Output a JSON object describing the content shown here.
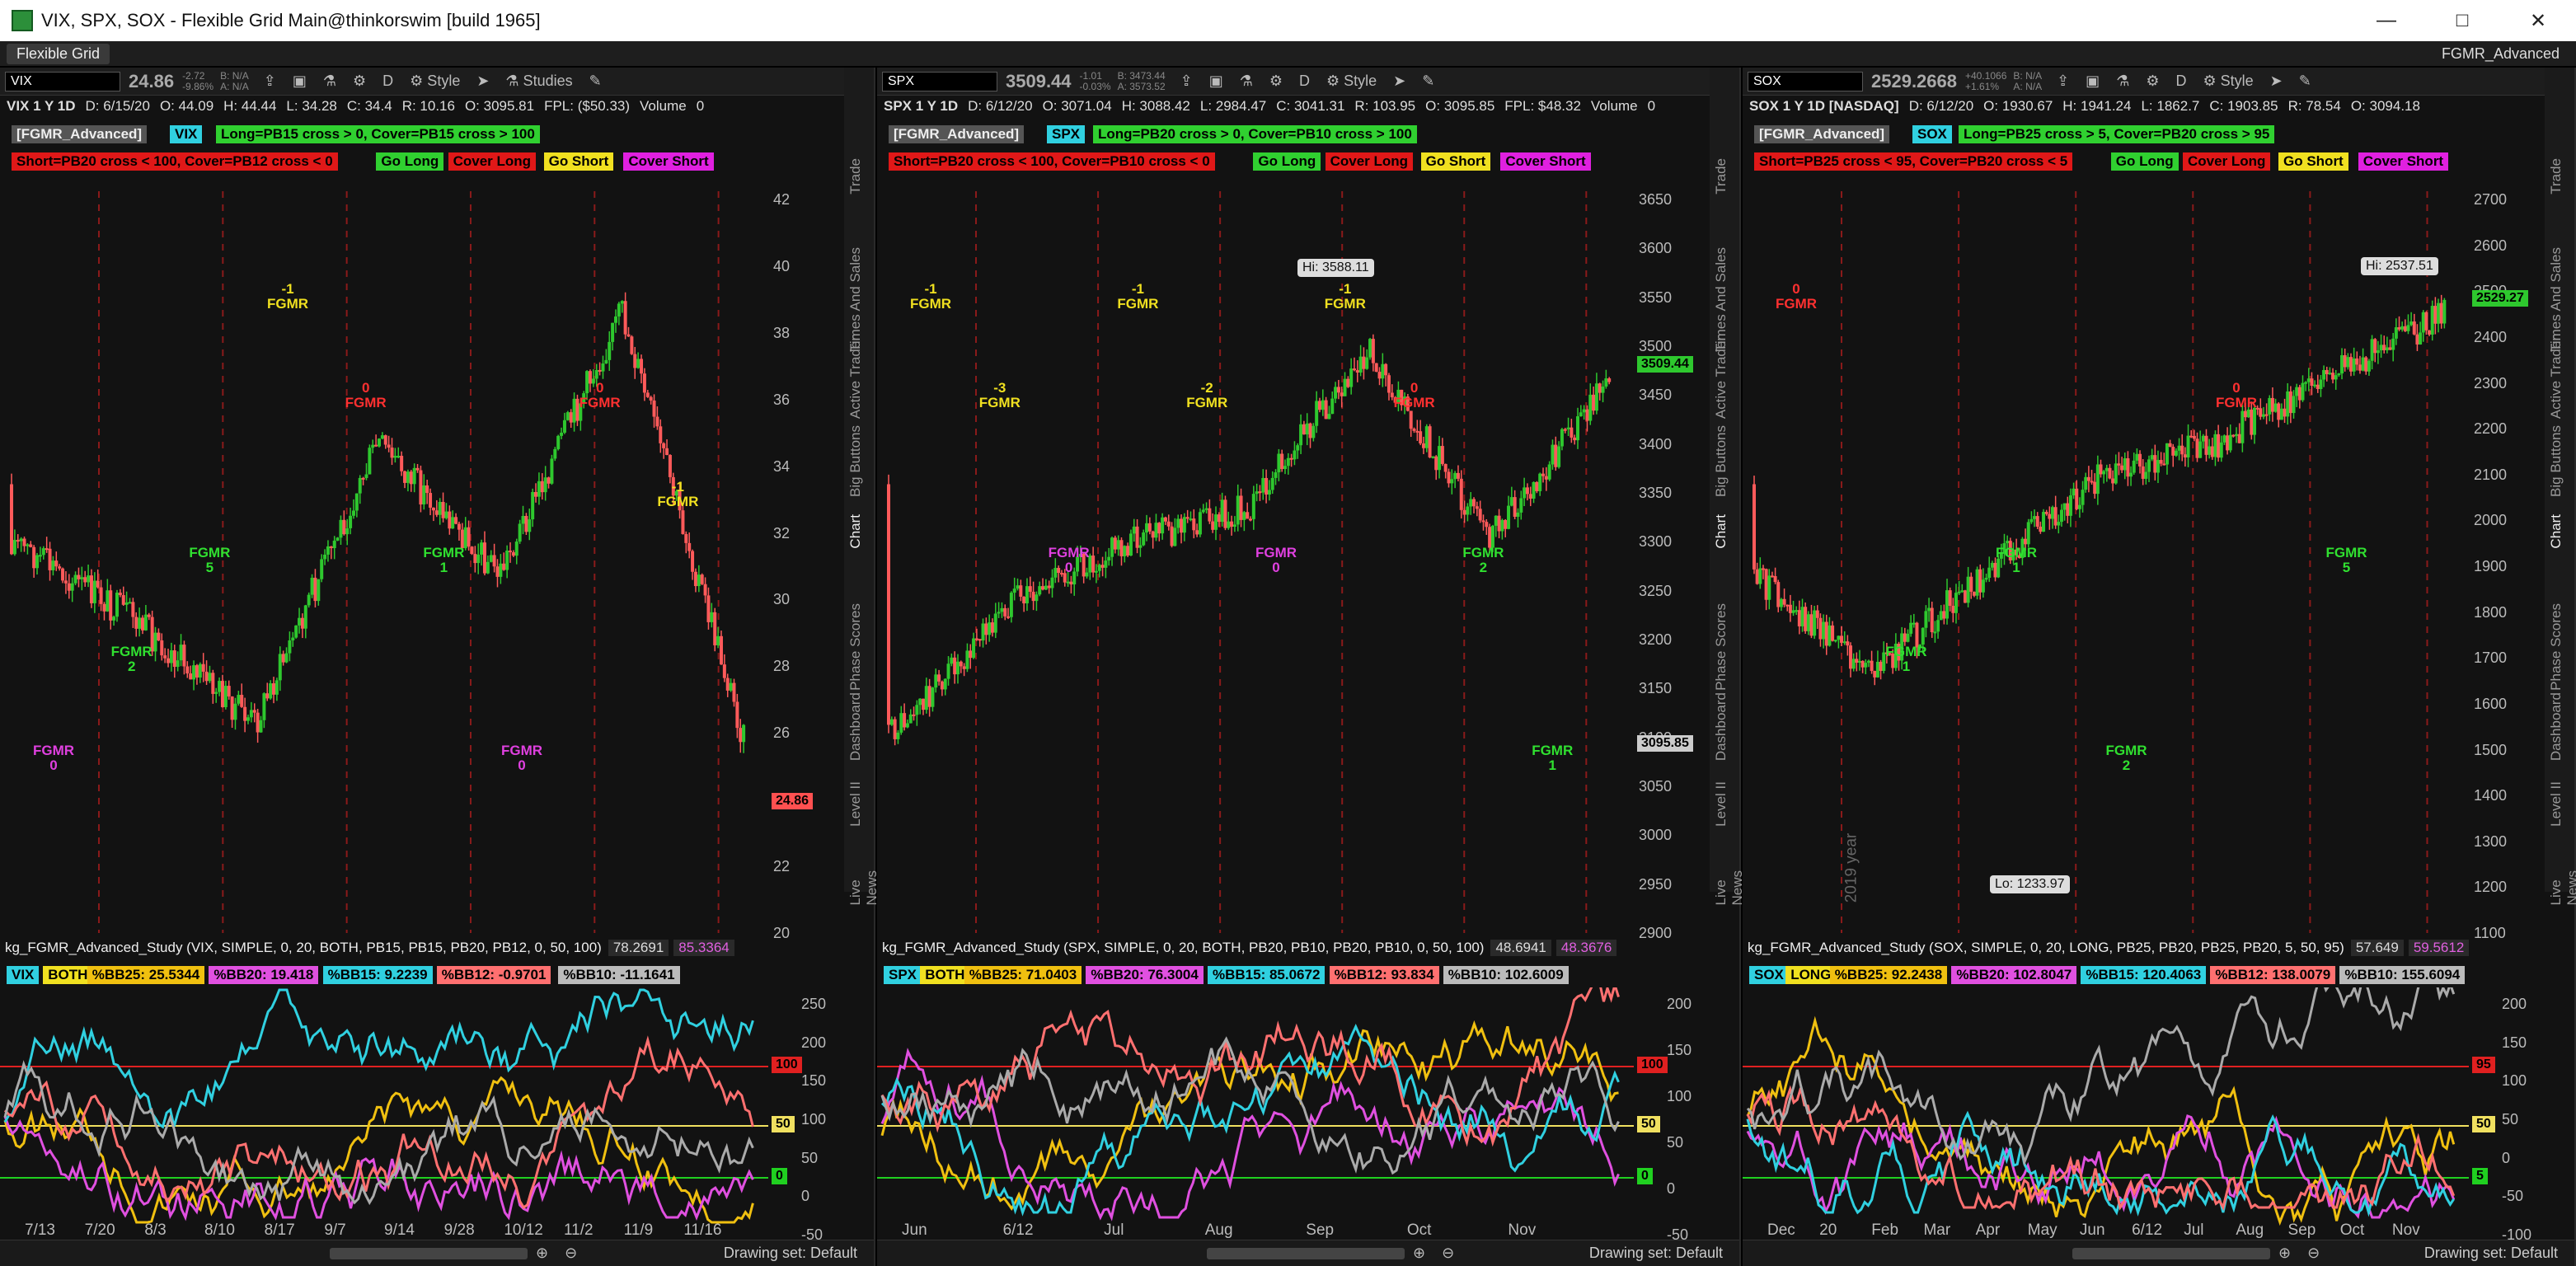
{
  "window": {
    "title": "VIX, SPX, SOX - Flexible Grid Main@thinkorswim [build 1965]",
    "minimize_icon": "minimize-icon",
    "maximize_icon": "maximize-icon",
    "close_icon": "close-icon"
  },
  "menubar": {
    "tab_label": "Flexible Grid",
    "workspace": "FGMR_Advanced"
  },
  "side_tabs": [
    "Trade",
    "Times And Sales",
    "Active Trader",
    "Big Buttons",
    "Chart",
    "Phase Scores",
    "Dashboard",
    "Level II",
    "Live News"
  ],
  "common": {
    "style": "Style",
    "studies": "Studies",
    "period": "D",
    "drawing_set": "Drawing set: Default",
    "volume": "Volume",
    "volume_value": "0"
  },
  "panels": [
    {
      "symbol": "VIX",
      "price": "24.86",
      "chg": "-2.72",
      "chg_pct": "-9.86%",
      "bid": "B: N/A",
      "ask": "A: N/A",
      "info": [
        "VIX 1 Y 1D",
        "D: 6/15/20",
        "O: 44.09",
        "H: 44.44",
        "L: 34.28",
        "C: 34.4",
        "R: 10.16",
        "O: 3095.81",
        "FPL: ($50.33)"
      ],
      "badge_study": "[FGMR_Advanced]",
      "badge_sym": "VIX",
      "long_rule": "Long=PB15 cross > 0, Cover=PB15 cross > 100",
      "short_rule": "Short=PB20 cross < 100, Cover=PB12 cross < 0",
      "go_long": "Go Long",
      "cover_long": "Cover Long",
      "go_short": "Go Short",
      "cover_short": "Cover Short",
      "yticks": [
        "42",
        "40",
        "38",
        "36",
        "34",
        "32",
        "30",
        "28",
        "26",
        "24",
        "22",
        "20"
      ],
      "price_tag": "24.86",
      "xticks": [
        "7/13",
        "7/20",
        "8/3",
        "8/10",
        "8/17",
        "9/7",
        "9/14",
        "9/28",
        "10/12",
        "11/2",
        "11/9",
        "11/16"
      ],
      "study_title": "kg_FGMR_Advanced_Study (VIX, SIMPLE, 0, 20, BOTH, PB15, PB15, PB20, PB12, 0, 50, 100)",
      "study_v1": "78.2691",
      "study_v2": "85.3364",
      "study_sym": "VIX",
      "study_mode": "BOTH",
      "pb": [
        "%BB25: 25.5344",
        "%BB20: 19.418",
        "%BB15: 9.2239",
        "%BB12: -0.9701",
        "%BB10: -11.1641"
      ],
      "lower_yticks": [
        "250",
        "200",
        "150",
        "100",
        "50",
        "0",
        "-50"
      ],
      "lower_tags": [
        "100",
        "50",
        "0"
      ],
      "annotations": [
        {
          "t": "FGMR\n0",
          "c": "#e040e0"
        },
        {
          "t": "FGMR\n2",
          "c": "#30e030"
        },
        {
          "t": "FGMR\n5",
          "c": "#30e030"
        },
        {
          "t": "-1\nFGMR",
          "c": "#f0e020"
        },
        {
          "t": "0\nFGMR",
          "c": "#ff3030"
        },
        {
          "t": "FGMR\n1",
          "c": "#30e030"
        },
        {
          "t": "FGMR\n0",
          "c": "#e040e0"
        },
        {
          "t": "0\nFGMR",
          "c": "#ff3030"
        },
        {
          "t": "-1\nFGMR",
          "c": "#f0e020"
        }
      ]
    },
    {
      "symbol": "SPX",
      "price": "3509.44",
      "chg": "-1.01",
      "chg_pct": "-0.03%",
      "bid": "B: 3473.44",
      "ask": "A: 3573.52",
      "info": [
        "SPX 1 Y 1D",
        "D: 6/12/20",
        "O: 3071.04",
        "H: 3088.42",
        "L: 2984.47",
        "C: 3041.31",
        "R: 103.95",
        "O: 3095.85",
        "FPL: $48.32"
      ],
      "badge_study": "[FGMR_Advanced]",
      "badge_sym": "SPX",
      "long_rule": "Long=PB20 cross > 0, Cover=PB10 cross > 100",
      "short_rule": "Short=PB20 cross < 100, Cover=PB10 cross < 0",
      "go_long": "Go Long",
      "cover_long": "Cover Long",
      "go_short": "Go Short",
      "cover_short": "Cover Short",
      "yticks": [
        "3650",
        "3600",
        "3550",
        "3500",
        "3450",
        "3400",
        "3350",
        "3300",
        "3250",
        "3200",
        "3150",
        "3100",
        "3050",
        "3000",
        "2950",
        "2900"
      ],
      "price_tag": "3509.44",
      "cross_tag": "3095.85",
      "hi": "Hi: 3588.11",
      "xticks": [
        "Jun",
        "6/12",
        "Jul",
        "Aug",
        "Sep",
        "Oct",
        "Nov"
      ],
      "study_title": "kg_FGMR_Advanced_Study (SPX, SIMPLE, 0, 20, BOTH, PB20, PB10, PB20, PB10, 0, 50, 100)",
      "study_v1": "48.6941",
      "study_v2": "48.3676",
      "study_sym": "SPX",
      "study_mode": "BOTH",
      "pb": [
        "%BB25: 71.0403",
        "%BB20: 76.3004",
        "%BB15: 85.0672",
        "%BB12: 93.834",
        "%BB10: 102.6009"
      ],
      "lower_yticks": [
        "200",
        "150",
        "100",
        "50",
        "0",
        "-50"
      ],
      "lower_tags": [
        "100",
        "50",
        "0"
      ],
      "annotations": [
        {
          "t": "-1\nFGMR",
          "c": "#f0e020"
        },
        {
          "t": "-3\nFGMR",
          "c": "#f0e020"
        },
        {
          "t": "FGMR\n0",
          "c": "#e040e0"
        },
        {
          "t": "-1\nFGMR",
          "c": "#f0e020"
        },
        {
          "t": "-2\nFGMR",
          "c": "#f0e020"
        },
        {
          "t": "FGMR\n0",
          "c": "#e040e0"
        },
        {
          "t": "-1\nFGMR",
          "c": "#f0e020"
        },
        {
          "t": "0\nFGMR",
          "c": "#ff3030"
        },
        {
          "t": "FGMR\n2",
          "c": "#30e030"
        },
        {
          "t": "FGMR\n1",
          "c": "#30e030"
        }
      ]
    },
    {
      "symbol": "SOX",
      "price": "2529.2668",
      "chg": "+40.1066",
      "chg_pct": "+1.61%",
      "bid": "B: N/A",
      "ask": "A: N/A",
      "info": [
        "SOX 1 Y 1D [NASDAQ]",
        "D: 6/12/20",
        "O: 1930.67",
        "H: 1941.24",
        "L: 1862.7",
        "C: 1903.85",
        "R: 78.54",
        "O: 3094.18"
      ],
      "badge_study": "[FGMR_Advanced]",
      "badge_sym": "SOX",
      "long_rule": "Long=PB25 cross > 5, Cover=PB20 cross > 95",
      "short_rule": "Short=PB25 cross < 95, Cover=PB20 cross < 5",
      "go_long": "Go Long",
      "cover_long": "Cover Long",
      "go_short": "Go Short",
      "cover_short": "Cover Short",
      "yticks": [
        "2700",
        "2600",
        "2500",
        "2400",
        "2300",
        "2200",
        "2100",
        "2000",
        "1900",
        "1800",
        "1700",
        "1600",
        "1500",
        "1400",
        "1300",
        "1200",
        "1100"
      ],
      "price_tag": "2529.27",
      "hi": "Hi: 2537.51",
      "lo": "Lo: 1233.97",
      "year_label": "2019 year",
      "xticks": [
        "Dec",
        "20",
        "Feb",
        "Mar",
        "Apr",
        "May",
        "Jun",
        "6/12",
        "Jul",
        "Aug",
        "Sep",
        "Oct",
        "Nov"
      ],
      "study_title": "kg_FGMR_Advanced_Study (SOX, SIMPLE, 0, 20, LONG, PB25, PB20, PB25, PB20, 5, 50, 95)",
      "study_v1": "57.649",
      "study_v2": "59.5612",
      "study_sym": "SOX",
      "study_mode": "LONG",
      "pb": [
        "%BB25: 92.2438",
        "%BB20: 102.8047",
        "%BB15: 120.4063",
        "%BB12: 138.0079",
        "%BB10: 155.6094"
      ],
      "lower_yticks": [
        "200",
        "150",
        "100",
        "50",
        "0",
        "-50",
        "-100"
      ],
      "lower_tags": [
        "95",
        "50",
        "5"
      ],
      "annotations": [
        {
          "t": "0\nFGMR",
          "c": "#ff3030"
        },
        {
          "t": "FGMR\n1",
          "c": "#30e030"
        },
        {
          "t": "FGMR\n1",
          "c": "#30e030"
        },
        {
          "t": "FGMR\n2",
          "c": "#30e030"
        },
        {
          "t": "0\nFGMR",
          "c": "#ff3030"
        },
        {
          "t": "FGMR\n5",
          "c": "#30e030"
        }
      ]
    }
  ]
}
